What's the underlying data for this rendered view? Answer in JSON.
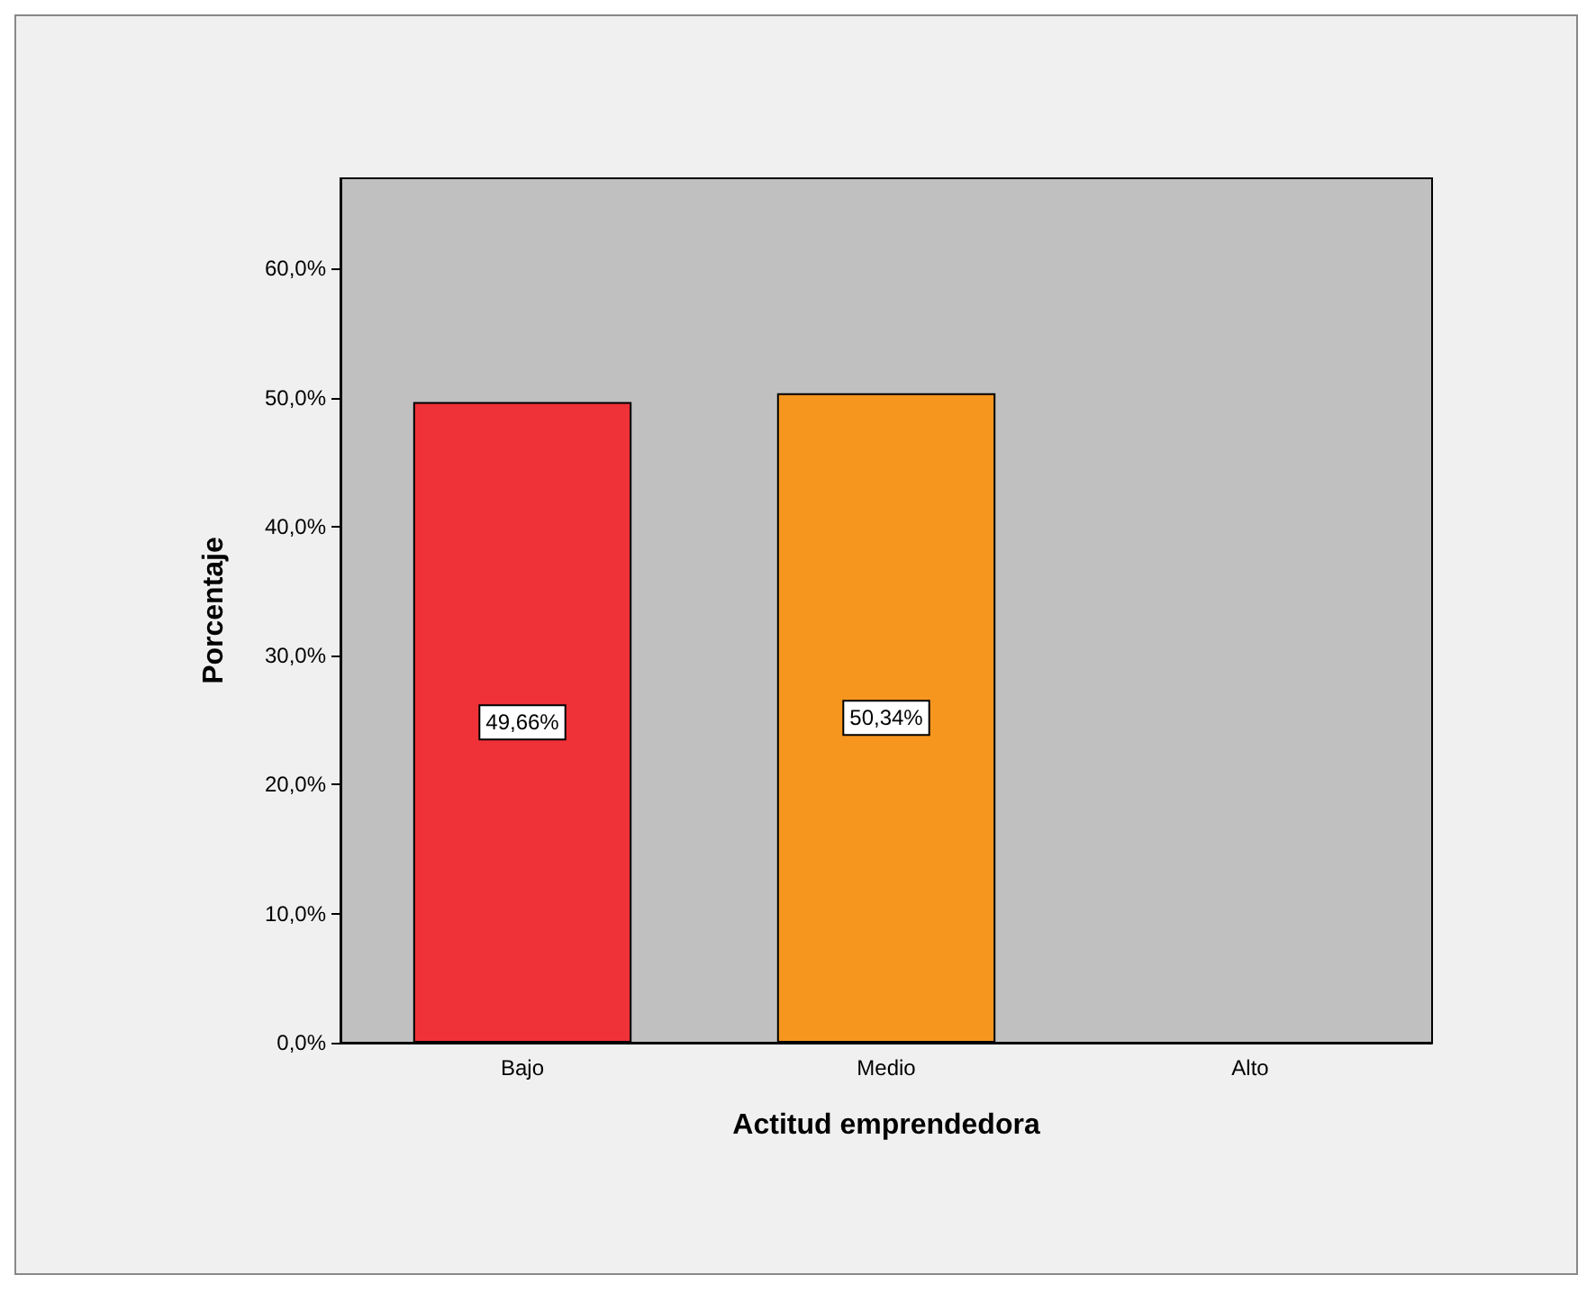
{
  "chart_data": {
    "type": "bar",
    "xlabel": "Actitud emprendedora",
    "ylabel": "Porcentaje",
    "categories": [
      "Bajo",
      "Medio",
      "Alto"
    ],
    "values": [
      49.66,
      50.34,
      null
    ],
    "colors": [
      "#ef3237",
      "#f7961e",
      null
    ],
    "value_labels": [
      "49,66%",
      "50,34%",
      null
    ],
    "ylim": [
      0,
      67
    ],
    "yticks": [
      {
        "value": 0,
        "label": "0,0%"
      },
      {
        "value": 10,
        "label": "10,0%"
      },
      {
        "value": 20,
        "label": "20,0%"
      },
      {
        "value": 30,
        "label": "30,0%"
      },
      {
        "value": 40,
        "label": "40,0%"
      },
      {
        "value": 50,
        "label": "50,0%"
      },
      {
        "value": 60,
        "label": "60,0%"
      }
    ],
    "grid": false
  }
}
